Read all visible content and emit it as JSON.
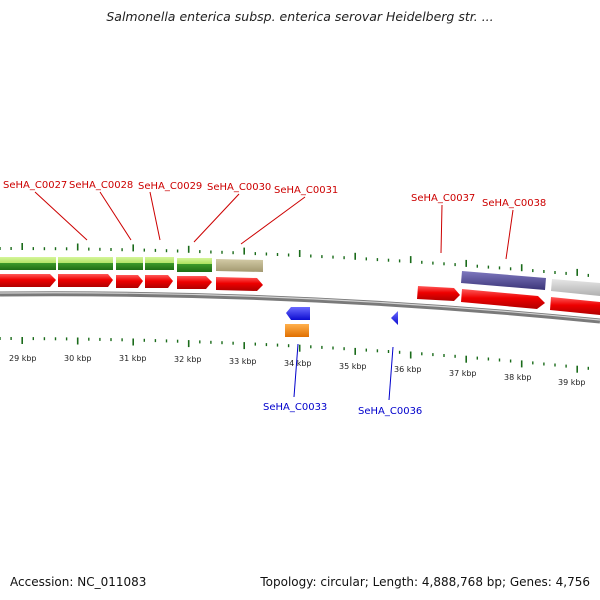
{
  "title": "Salmonella enterica subsp. enterica serovar Heidelberg str. ...",
  "footer": {
    "accession": "Accession: NC_011083",
    "summary": "Topology: circular; Length: 4,888,768 bp; Genes: 4,756"
  },
  "colors": {
    "forward_label": "#cc0000",
    "reverse_label": "#0000cc",
    "tick": "#1a6b1a",
    "backbone": "#8a8a8a",
    "cds_forward": "#ee0000",
    "cds_reverse": "#1a1aee",
    "rna_orange": "#ff8c00",
    "green_light": "#9ad94a",
    "green_dark": "#2e8b1f",
    "khaki": "#b7ad83",
    "purple": "#4d4790",
    "grey": "#c8c8c8"
  },
  "kbp_labels": [
    "29 kbp",
    "30 kbp",
    "31 kbp",
    "32 kbp",
    "33 kbp",
    "34 kbp",
    "35 kbp",
    "36 kbp",
    "37 kbp",
    "38 kbp",
    "39 kbp"
  ],
  "forward_genes": [
    {
      "label": "SeHA_C0027"
    },
    {
      "label": "SeHA_C0028"
    },
    {
      "label": "SeHA_C0029"
    },
    {
      "label": "SeHA_C0030"
    },
    {
      "label": "SeHA_C0031"
    },
    {
      "label": "SeHA_C0037"
    },
    {
      "label": "SeHA_C0038"
    }
  ],
  "reverse_genes": [
    {
      "label": "SeHA_C0033"
    },
    {
      "label": "SeHA_C0036"
    }
  ]
}
